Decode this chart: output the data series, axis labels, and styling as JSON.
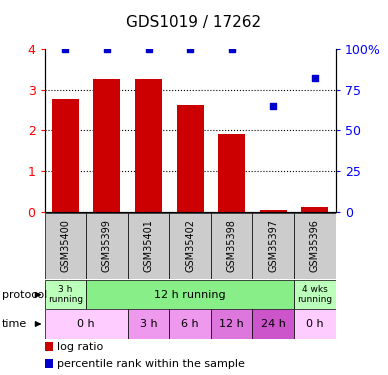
{
  "title": "GDS1019 / 17262",
  "samples": [
    "GSM35400",
    "GSM35399",
    "GSM35401",
    "GSM35402",
    "GSM35398",
    "GSM35397",
    "GSM35396"
  ],
  "log_ratio": [
    2.78,
    3.25,
    3.25,
    2.62,
    1.92,
    0.05,
    0.12
  ],
  "percentile_rank": [
    100,
    100,
    100,
    100,
    100,
    65,
    82
  ],
  "ylim_left": [
    0,
    4
  ],
  "ylim_right": [
    0,
    100
  ],
  "yticks_left": [
    0,
    1,
    2,
    3,
    4
  ],
  "yticks_right": [
    0,
    25,
    50,
    75,
    100
  ],
  "yticklabels_right": [
    "0",
    "25",
    "50",
    "75",
    "100%"
  ],
  "bar_color": "#cc0000",
  "dot_color": "#0000cc",
  "proto_groups": [
    {
      "start": 0,
      "end": 1,
      "label": "3 h\nrunning",
      "color": "#bbffbb"
    },
    {
      "start": 1,
      "end": 6,
      "label": "12 h running",
      "color": "#88ee88"
    },
    {
      "start": 6,
      "end": 7,
      "label": "4 wks\nrunning",
      "color": "#bbffbb"
    }
  ],
  "time_groups": [
    {
      "start": 0,
      "end": 2,
      "label": "0 h",
      "color": "#ffccff"
    },
    {
      "start": 2,
      "end": 3,
      "label": "3 h",
      "color": "#ee99ee"
    },
    {
      "start": 3,
      "end": 4,
      "label": "6 h",
      "color": "#ee99ee"
    },
    {
      "start": 4,
      "end": 5,
      "label": "12 h",
      "color": "#dd77dd"
    },
    {
      "start": 5,
      "end": 6,
      "label": "24 h",
      "color": "#cc55cc"
    },
    {
      "start": 6,
      "end": 7,
      "label": "0 h",
      "color": "#ffccff"
    }
  ],
  "bg_color": "#ffffff",
  "label_bg": "#cccccc"
}
